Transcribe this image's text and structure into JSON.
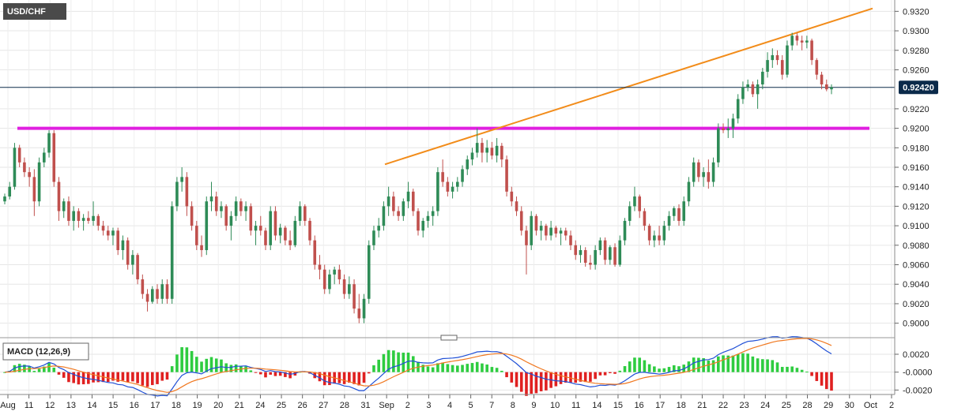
{
  "chart_data": [
    {
      "type": "candlestick",
      "title": "USD/CHF",
      "ylim": [
        0.899,
        0.933
      ],
      "y_ticks": [
        "0.9000",
        "0.9020",
        "0.9040",
        "0.9060",
        "0.9080",
        "0.9100",
        "0.9120",
        "0.9140",
        "0.9160",
        "0.9180",
        "0.9200",
        "0.9220",
        "0.9260",
        "0.9280",
        "0.9300",
        "0.9320"
      ],
      "current_price": "0.92420",
      "current_value": 0.9242,
      "grid": true,
      "candles": [
        [
          0.9125,
          0.9133,
          0.9122,
          0.913
        ],
        [
          0.913,
          0.9145,
          0.9127,
          0.914
        ],
        [
          0.914,
          0.9185,
          0.9137,
          0.918
        ],
        [
          0.918,
          0.9183,
          0.916,
          0.9165
        ],
        [
          0.9165,
          0.917,
          0.915,
          0.9155
        ],
        [
          0.9155,
          0.916,
          0.914,
          0.915
        ],
        [
          0.915,
          0.9158,
          0.911,
          0.9125
        ],
        [
          0.9125,
          0.917,
          0.912,
          0.9165
        ],
        [
          0.9165,
          0.918,
          0.916,
          0.9175
        ],
        [
          0.9175,
          0.9198,
          0.917,
          0.9195
        ],
        [
          0.9195,
          0.9198,
          0.914,
          0.9145
        ],
        [
          0.9145,
          0.915,
          0.9105,
          0.9115
        ],
        [
          0.9115,
          0.9128,
          0.9108,
          0.9125
        ],
        [
          0.9125,
          0.913,
          0.91,
          0.9105
        ],
        [
          0.9105,
          0.912,
          0.9095,
          0.9115
        ],
        [
          0.9115,
          0.9118,
          0.9098,
          0.9105
        ],
        [
          0.9105,
          0.9112,
          0.9095,
          0.9108
        ],
        [
          0.9108,
          0.9115,
          0.9102,
          0.9105
        ],
        [
          0.9105,
          0.9125,
          0.91,
          0.911
        ],
        [
          0.911,
          0.9112,
          0.9095,
          0.91
        ],
        [
          0.91,
          0.9105,
          0.909,
          0.9095
        ],
        [
          0.9095,
          0.91,
          0.9085,
          0.909
        ],
        [
          0.909,
          0.9098,
          0.908,
          0.9095
        ],
        [
          0.9095,
          0.9098,
          0.907,
          0.9075
        ],
        [
          0.9075,
          0.909,
          0.9065,
          0.9085
        ],
        [
          0.9085,
          0.9088,
          0.9055,
          0.906
        ],
        [
          0.906,
          0.9075,
          0.905,
          0.907
        ],
        [
          0.907,
          0.9072,
          0.904,
          0.9045
        ],
        [
          0.9045,
          0.905,
          0.9025,
          0.903
        ],
        [
          0.903,
          0.9035,
          0.9012,
          0.9022
        ],
        [
          0.9022,
          0.9038,
          0.902,
          0.9035
        ],
        [
          0.9035,
          0.904,
          0.902,
          0.9025
        ],
        [
          0.9025,
          0.9045,
          0.902,
          0.904
        ],
        [
          0.904,
          0.9045,
          0.902,
          0.9025
        ],
        [
          0.9025,
          0.9125,
          0.902,
          0.912
        ],
        [
          0.912,
          0.915,
          0.9115,
          0.9145
        ],
        [
          0.9145,
          0.916,
          0.9135,
          0.915
        ],
        [
          0.915,
          0.9155,
          0.911,
          0.912
        ],
        [
          0.912,
          0.9125,
          0.9095,
          0.91
        ],
        [
          0.91,
          0.9105,
          0.9075,
          0.908
        ],
        [
          0.908,
          0.909,
          0.9068,
          0.9075
        ],
        [
          0.9075,
          0.913,
          0.907,
          0.9125
        ],
        [
          0.9125,
          0.9145,
          0.9115,
          0.913
        ],
        [
          0.913,
          0.9135,
          0.911,
          0.9115
        ],
        [
          0.9115,
          0.9125,
          0.9108,
          0.912
        ],
        [
          0.912,
          0.9122,
          0.9095,
          0.91
        ],
        [
          0.91,
          0.9115,
          0.9085,
          0.911
        ],
        [
          0.911,
          0.913,
          0.9105,
          0.9125
        ],
        [
          0.9125,
          0.9128,
          0.911,
          0.9115
        ],
        [
          0.9115,
          0.9125,
          0.9105,
          0.912
        ],
        [
          0.912,
          0.9123,
          0.909,
          0.9095
        ],
        [
          0.9095,
          0.9105,
          0.908,
          0.91
        ],
        [
          0.91,
          0.911,
          0.909,
          0.9095
        ],
        [
          0.9095,
          0.9098,
          0.9075,
          0.908
        ],
        [
          0.908,
          0.912,
          0.9075,
          0.9115
        ],
        [
          0.9115,
          0.912,
          0.9085,
          0.909
        ],
        [
          0.909,
          0.9102,
          0.9082,
          0.9098
        ],
        [
          0.9098,
          0.91,
          0.908,
          0.9085
        ],
        [
          0.9085,
          0.9095,
          0.9075,
          0.908
        ],
        [
          0.908,
          0.911,
          0.9078,
          0.9105
        ],
        [
          0.9105,
          0.9125,
          0.91,
          0.912
        ],
        [
          0.912,
          0.9122,
          0.91,
          0.9105
        ],
        [
          0.9105,
          0.9108,
          0.908,
          0.9085
        ],
        [
          0.9085,
          0.909,
          0.9055,
          0.906
        ],
        [
          0.906,
          0.907,
          0.9045,
          0.9055
        ],
        [
          0.9055,
          0.906,
          0.903,
          0.9035
        ],
        [
          0.9035,
          0.9055,
          0.903,
          0.905
        ],
        [
          0.905,
          0.9058,
          0.904,
          0.9055
        ],
        [
          0.9055,
          0.906,
          0.904,
          0.9045
        ],
        [
          0.9045,
          0.905,
          0.9025,
          0.903
        ],
        [
          0.903,
          0.9048,
          0.9025,
          0.904
        ],
        [
          0.904,
          0.9045,
          0.901,
          0.9015
        ],
        [
          0.9015,
          0.903,
          0.9,
          0.9005
        ],
        [
          0.9005,
          0.903,
          0.9,
          0.9025
        ],
        [
          0.9025,
          0.9085,
          0.902,
          0.908
        ],
        [
          0.908,
          0.91,
          0.9075,
          0.9095
        ],
        [
          0.9095,
          0.9108,
          0.9088,
          0.91
        ],
        [
          0.91,
          0.9125,
          0.9095,
          0.912
        ],
        [
          0.912,
          0.914,
          0.911,
          0.913
        ],
        [
          0.913,
          0.9135,
          0.911,
          0.9115
        ],
        [
          0.9115,
          0.912,
          0.9105,
          0.911
        ],
        [
          0.911,
          0.9128,
          0.9105,
          0.9125
        ],
        [
          0.9125,
          0.9145,
          0.9118,
          0.9135
        ],
        [
          0.9135,
          0.9138,
          0.911,
          0.9115
        ],
        [
          0.9115,
          0.9118,
          0.909,
          0.9095
        ],
        [
          0.9095,
          0.9108,
          0.9088,
          0.9105
        ],
        [
          0.9105,
          0.9115,
          0.9098,
          0.911
        ],
        [
          0.911,
          0.912,
          0.91,
          0.9115
        ],
        [
          0.9115,
          0.916,
          0.911,
          0.9155
        ],
        [
          0.9155,
          0.9168,
          0.914,
          0.9145
        ],
        [
          0.9145,
          0.915,
          0.913,
          0.9135
        ],
        [
          0.9135,
          0.9145,
          0.9128,
          0.914
        ],
        [
          0.914,
          0.915,
          0.9135,
          0.9145
        ],
        [
          0.9145,
          0.9162,
          0.914,
          0.9158
        ],
        [
          0.9158,
          0.9172,
          0.9152,
          0.9168
        ],
        [
          0.9168,
          0.918,
          0.9162,
          0.9175
        ],
        [
          0.9175,
          0.92,
          0.917,
          0.9185
        ],
        [
          0.9185,
          0.919,
          0.9165,
          0.9175
        ],
        [
          0.9175,
          0.9188,
          0.9165,
          0.918
        ],
        [
          0.918,
          0.9186,
          0.9168,
          0.9172
        ],
        [
          0.9172,
          0.919,
          0.9165,
          0.9182
        ],
        [
          0.9182,
          0.9185,
          0.916,
          0.9168
        ],
        [
          0.9168,
          0.9172,
          0.913,
          0.9135
        ],
        [
          0.9135,
          0.914,
          0.912,
          0.9125
        ],
        [
          0.9125,
          0.913,
          0.911,
          0.9115
        ],
        [
          0.9115,
          0.912,
          0.909,
          0.9095
        ],
        [
          0.9095,
          0.91,
          0.905,
          0.908
        ],
        [
          0.908,
          0.9115,
          0.9075,
          0.911
        ],
        [
          0.911,
          0.9112,
          0.909,
          0.9095
        ],
        [
          0.9095,
          0.9105,
          0.9085,
          0.91
        ],
        [
          0.91,
          0.9102,
          0.9085,
          0.909
        ],
        [
          0.909,
          0.9105,
          0.9085,
          0.9098
        ],
        [
          0.9098,
          0.91,
          0.9088,
          0.9092
        ],
        [
          0.9092,
          0.9098,
          0.908,
          0.9095
        ],
        [
          0.9095,
          0.9098,
          0.9085,
          0.909
        ],
        [
          0.909,
          0.9095,
          0.9075,
          0.908
        ],
        [
          0.908,
          0.9085,
          0.9065,
          0.907
        ],
        [
          0.907,
          0.908,
          0.9062,
          0.9075
        ],
        [
          0.9075,
          0.9078,
          0.9058,
          0.9062
        ],
        [
          0.9062,
          0.907,
          0.9055,
          0.906
        ],
        [
          0.906,
          0.908,
          0.9055,
          0.9075
        ],
        [
          0.9075,
          0.9088,
          0.907,
          0.9085
        ],
        [
          0.9085,
          0.9088,
          0.906,
          0.9065
        ],
        [
          0.9065,
          0.908,
          0.906,
          0.9078
        ],
        [
          0.9078,
          0.9082,
          0.9058,
          0.906
        ],
        [
          0.906,
          0.909,
          0.9058,
          0.9085
        ],
        [
          0.9085,
          0.9108,
          0.908,
          0.9105
        ],
        [
          0.9105,
          0.9125,
          0.91,
          0.912
        ],
        [
          0.912,
          0.914,
          0.9115,
          0.913
        ],
        [
          0.913,
          0.9132,
          0.9108,
          0.9115
        ],
        [
          0.9115,
          0.9118,
          0.9095,
          0.91
        ],
        [
          0.91,
          0.9102,
          0.908,
          0.9085
        ],
        [
          0.9085,
          0.9095,
          0.9078,
          0.909
        ],
        [
          0.909,
          0.91,
          0.908,
          0.9085
        ],
        [
          0.9085,
          0.9105,
          0.908,
          0.91
        ],
        [
          0.91,
          0.9115,
          0.9095,
          0.911
        ],
        [
          0.911,
          0.912,
          0.9105,
          0.9118
        ],
        [
          0.9118,
          0.9122,
          0.91,
          0.9105
        ],
        [
          0.9105,
          0.913,
          0.91,
          0.9125
        ],
        [
          0.9125,
          0.915,
          0.912,
          0.9145
        ],
        [
          0.9145,
          0.917,
          0.914,
          0.9165
        ],
        [
          0.9165,
          0.9168,
          0.9145,
          0.915
        ],
        [
          0.915,
          0.916,
          0.914,
          0.9155
        ],
        [
          0.9155,
          0.9168,
          0.9138,
          0.9145
        ],
        [
          0.9145,
          0.917,
          0.914,
          0.9165
        ],
        [
          0.9165,
          0.9205,
          0.916,
          0.92
        ],
        [
          0.92,
          0.9205,
          0.9195,
          0.9198
        ],
        [
          0.9198,
          0.921,
          0.919,
          0.92
        ],
        [
          0.92,
          0.9215,
          0.919,
          0.921
        ],
        [
          0.921,
          0.9235,
          0.9205,
          0.923
        ],
        [
          0.923,
          0.9248,
          0.9225,
          0.9242
        ],
        [
          0.9242,
          0.925,
          0.9238,
          0.9245
        ],
        [
          0.9245,
          0.9248,
          0.9232,
          0.9235
        ],
        [
          0.9235,
          0.925,
          0.922,
          0.9245
        ],
        [
          0.9245,
          0.9262,
          0.924,
          0.9258
        ],
        [
          0.9258,
          0.9278,
          0.9252,
          0.927
        ],
        [
          0.927,
          0.9282,
          0.9262,
          0.9275
        ],
        [
          0.9275,
          0.928,
          0.9265,
          0.927
        ],
        [
          0.927,
          0.9275,
          0.925,
          0.9255
        ],
        [
          0.9255,
          0.929,
          0.9252,
          0.9285
        ],
        [
          0.9285,
          0.9298,
          0.928,
          0.9295
        ],
        [
          0.9295,
          0.9298,
          0.9285,
          0.929
        ],
        [
          0.929,
          0.9295,
          0.928,
          0.9288
        ],
        [
          0.9288,
          0.9295,
          0.9282,
          0.929
        ],
        [
          0.929,
          0.9292,
          0.9265,
          0.927
        ],
        [
          0.927,
          0.9272,
          0.925,
          0.9255
        ],
        [
          0.9255,
          0.9258,
          0.924,
          0.9245
        ],
        [
          0.9245,
          0.925,
          0.9238,
          0.924
        ],
        [
          0.924,
          0.9245,
          0.9235,
          0.9242
        ]
      ],
      "horizontal_line": {
        "value": 0.92,
        "color": "#e020e0"
      },
      "trend_line": {
        "from": [
          1,
          0.9166
        ],
        "to": [
          1.06,
          0.9323
        ],
        "color": "#f28c1a"
      },
      "x_labels": [
        "Aug",
        "11",
        "12",
        "13",
        "14",
        "15",
        "16",
        "17",
        "18",
        "19",
        "20",
        "21",
        "24",
        "25",
        "26",
        "27",
        "28",
        "31",
        "Sep",
        "2",
        "3",
        "4",
        "5",
        "7",
        "8",
        "9",
        "10",
        "11",
        "14",
        "15",
        "16",
        "17",
        "18",
        "21",
        "22",
        "23",
        "24",
        "25",
        "28",
        "29",
        "30",
        "Oct",
        "2"
      ],
      "colors": {
        "up": "#2e8b57",
        "down": "#c0504d",
        "price_line": "#0b2a4a"
      }
    },
    {
      "type": "macd",
      "title": "MACD (12,26,9)",
      "ylim": [
        -0.0025,
        0.0035
      ],
      "y_ticks": [
        "0.0020",
        "-0.0000",
        "-0.0020"
      ],
      "colors": {
        "macd": "#1f4fd6",
        "signal": "#f07820",
        "hist_pos": "#2ecc40",
        "hist_neg": "#e02020"
      }
    }
  ]
}
